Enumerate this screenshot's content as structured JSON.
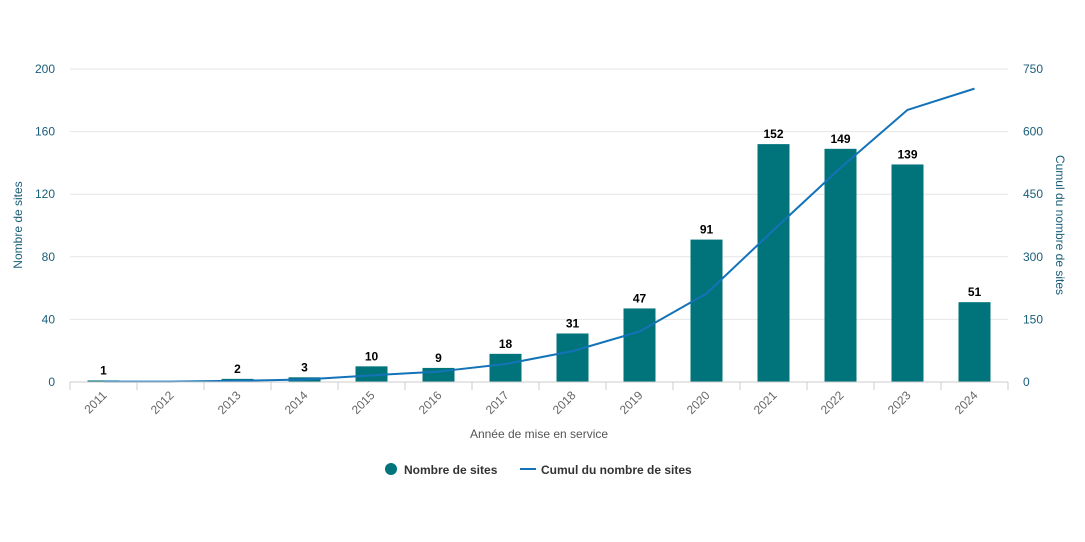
{
  "chart_data": {
    "type": "bar",
    "categories": [
      "2011",
      "2012",
      "2013",
      "2014",
      "2015",
      "2016",
      "2017",
      "2018",
      "2019",
      "2020",
      "2021",
      "2022",
      "2023",
      "2024"
    ],
    "series": [
      {
        "name": "Nombre de sites",
        "type": "bar",
        "axis": "left",
        "color": "#00747a",
        "values": [
          1,
          null,
          2,
          3,
          10,
          9,
          18,
          31,
          47,
          91,
          152,
          149,
          139,
          51
        ]
      },
      {
        "name": "Cumul du nombre de sites",
        "type": "line",
        "axis": "right",
        "color": "#1473b8",
        "values": [
          1,
          1,
          3,
          6,
          16,
          25,
          43,
          74,
          121,
          212,
          364,
          513,
          652,
          703
        ]
      }
    ],
    "xlabel": "Année de mise en service",
    "ylabel_left": "Nombre de sites",
    "ylabel_right": "Cumul du nombre de sites",
    "ylim_left": [
      0,
      200
    ],
    "yticks_left": [
      "0",
      "40",
      "80",
      "120",
      "160",
      "200"
    ],
    "ylim_right": [
      0,
      750
    ],
    "yticks_right": [
      "0",
      "150",
      "300",
      "450",
      "600",
      "750"
    ],
    "grid": true,
    "legend_position": "bottom-center",
    "data_labels": true
  }
}
